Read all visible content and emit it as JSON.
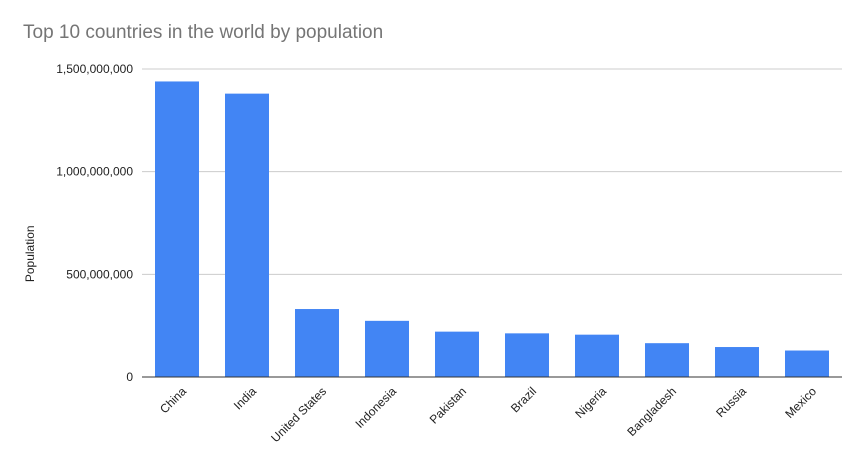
{
  "chart_data": {
    "type": "bar",
    "title": "Top 10 countries in the world by population",
    "xlabel": "",
    "ylabel": "Population",
    "categories": [
      "China",
      "India",
      "United States",
      "Indonesia",
      "Pakistan",
      "Brazil",
      "Nigeria",
      "Bangladesh",
      "Russia",
      "Mexico"
    ],
    "values": [
      1439323776,
      1380004385,
      331002651,
      273523615,
      220892340,
      212559417,
      206139589,
      164689383,
      145934462,
      128932753
    ],
    "ylim": [
      0,
      1500000000
    ],
    "yticks": [
      0,
      500000000,
      1000000000,
      1500000000
    ],
    "ytick_labels": [
      "0",
      "500,000,000",
      "1,000,000,000",
      "1,500,000,000"
    ],
    "grid": true,
    "legend": "none",
    "bar_color": "#4285f4"
  }
}
